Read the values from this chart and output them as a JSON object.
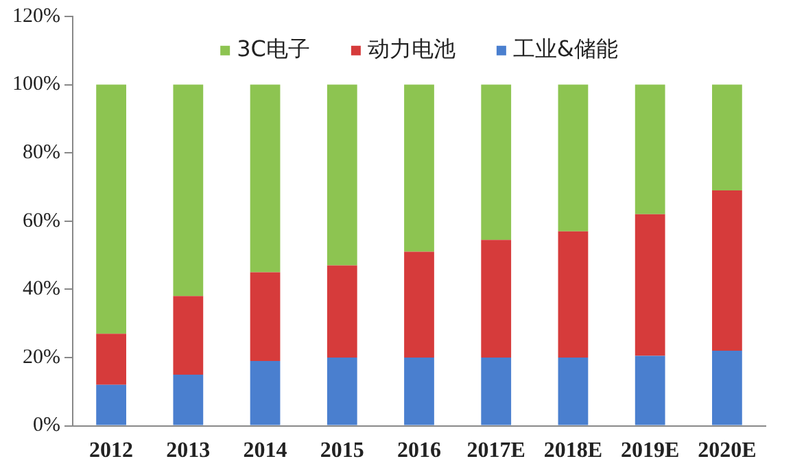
{
  "chart_data": {
    "type": "bar",
    "stacked": true,
    "categories": [
      "2012",
      "2013",
      "2014",
      "2015",
      "2016",
      "2017E",
      "2018E",
      "2019E",
      "2020E"
    ],
    "series": [
      {
        "name": "工业&储能",
        "color": "#4a7fcf",
        "values": [
          12,
          15,
          19,
          20,
          20,
          20,
          20,
          20.5,
          22
        ]
      },
      {
        "name": "动力电池",
        "color": "#d63b3b",
        "values": [
          15,
          23,
          26,
          27,
          31,
          34.5,
          37,
          41.5,
          47
        ]
      },
      {
        "name": "3C电子",
        "color": "#8dc451",
        "values": [
          73,
          62,
          55,
          53,
          49,
          45.5,
          43,
          38,
          31
        ]
      }
    ],
    "ylim": [
      0,
      120
    ],
    "yticks": [
      {
        "value": 0,
        "label": "0%"
      },
      {
        "value": 20,
        "label": "20%"
      },
      {
        "value": 40,
        "label": "40%"
      },
      {
        "value": 60,
        "label": "60%"
      },
      {
        "value": 80,
        "label": "80%"
      },
      {
        "value": 100,
        "label": "100%"
      },
      {
        "value": 120,
        "label": "120%"
      }
    ],
    "grid": false,
    "legend": "top"
  }
}
